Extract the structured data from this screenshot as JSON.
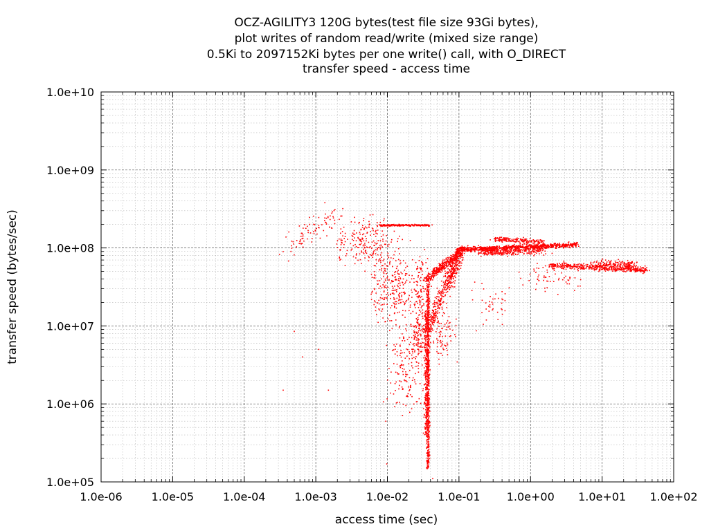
{
  "chart_data": {
    "type": "scatter",
    "title_lines": [
      "OCZ-AGILITY3 120G bytes(test file size 93Gi bytes),",
      "plot writes of random read/write (mixed size range)",
      "0.5Ki to 2097152Ki bytes per one write() call, with O_DIRECT",
      "transfer speed - access time"
    ],
    "xlabel": "access time (sec)",
    "ylabel": "transfer speed (bytes/sec)",
    "x_scale": "log",
    "y_scale": "log",
    "xlim": [
      1e-06,
      100
    ],
    "ylim": [
      100000,
      10000000000
    ],
    "x_ticks": [
      {
        "value": 1e-06,
        "label": "1.0e-06"
      },
      {
        "value": 1e-05,
        "label": "1.0e-05"
      },
      {
        "value": 0.0001,
        "label": "1.0e-04"
      },
      {
        "value": 0.001,
        "label": "1.0e-03"
      },
      {
        "value": 0.01,
        "label": "1.0e-02"
      },
      {
        "value": 0.1,
        "label": "1.0e-01"
      },
      {
        "value": 1,
        "label": "1.0e+00"
      },
      {
        "value": 10,
        "label": "1.0e+01"
      },
      {
        "value": 100,
        "label": "1.0e+02"
      }
    ],
    "y_ticks": [
      {
        "value": 100000,
        "label": "1.0e+05"
      },
      {
        "value": 1000000,
        "label": "1.0e+06"
      },
      {
        "value": 10000000,
        "label": "1.0e+07"
      },
      {
        "value": 100000000,
        "label": "1.0e+08"
      },
      {
        "value": 1000000000,
        "label": "1.0e+09"
      },
      {
        "value": 10000000000,
        "label": "1.0e+10"
      }
    ],
    "grid": true,
    "marker_color": "#ff0000",
    "clusters": [
      {
        "shape": "line",
        "from": [
          0.037,
          150000
        ],
        "to": [
          0.037,
          40000000
        ],
        "count": 650,
        "xspread": 0.022,
        "yspread": 0.02
      },
      {
        "shape": "line",
        "from": [
          0.035,
          400000
        ],
        "to": [
          0.035,
          15000000
        ],
        "count": 250,
        "xspread": 0.03,
        "yspread": 0.05
      },
      {
        "shape": "line",
        "from": [
          0.036,
          40000000
        ],
        "to": [
          0.12,
          100000000
        ],
        "count": 420,
        "xspread": 0.05,
        "yspread": 0.05
      },
      {
        "shape": "line",
        "from": [
          0.034,
          8000000
        ],
        "to": [
          0.1,
          80000000
        ],
        "count": 320,
        "xspread": 0.07,
        "yspread": 0.06
      },
      {
        "shape": "line",
        "from": [
          0.025,
          5000000
        ],
        "to": [
          0.032,
          60000000
        ],
        "count": 200,
        "xspread": 0.1,
        "yspread": 0.2
      },
      {
        "shape": "line",
        "from": [
          0.07,
          30000000
        ],
        "to": [
          0.1,
          85000000
        ],
        "count": 120,
        "xspread": 0.08,
        "yspread": 0.08
      },
      {
        "shape": "line",
        "from": [
          0.1,
          95000000
        ],
        "to": [
          4.5,
          110000000
        ],
        "count": 700,
        "xspread": 0.05,
        "yspread": 0.03
      },
      {
        "shape": "line",
        "from": [
          0.2,
          90000000
        ],
        "to": [
          1.5,
          95000000
        ],
        "count": 350,
        "xspread": 0.12,
        "yspread": 0.06
      },
      {
        "shape": "line",
        "from": [
          0.3,
          130000000
        ],
        "to": [
          1.5,
          120000000
        ],
        "count": 180,
        "xspread": 0.08,
        "yspread": 0.03
      },
      {
        "shape": "line",
        "from": [
          0.008,
          195000000
        ],
        "to": [
          0.04,
          195000000
        ],
        "count": 220,
        "xspread": 0.06,
        "yspread": 0.012
      },
      {
        "shape": "line",
        "from": [
          2,
          60000000
        ],
        "to": [
          42,
          52000000
        ],
        "count": 450,
        "xspread": 0.06,
        "yspread": 0.04
      },
      {
        "shape": "line",
        "from": [
          8,
          65000000
        ],
        "to": [
          30,
          60000000
        ],
        "count": 150,
        "xspread": 0.08,
        "yspread": 0.05
      },
      {
        "shape": "line",
        "from": [
          0.0004,
          100000000
        ],
        "to": [
          0.002,
          280000000
        ],
        "count": 90,
        "xspread": 0.18,
        "yspread": 0.15
      },
      {
        "shape": "blob",
        "center": [
          0.005,
          120000000
        ],
        "xspread": 0.4,
        "yspread": 0.3,
        "count": 220
      },
      {
        "shape": "blob",
        "center": [
          0.012,
          30000000
        ],
        "xspread": 0.3,
        "yspread": 0.45,
        "count": 260
      },
      {
        "shape": "blob",
        "center": [
          0.018,
          3000000
        ],
        "xspread": 0.25,
        "yspread": 0.55,
        "count": 150
      },
      {
        "shape": "blob",
        "center": [
          0.06,
          8000000
        ],
        "xspread": 0.18,
        "yspread": 0.4,
        "count": 90
      },
      {
        "shape": "blob",
        "center": [
          0.3,
          20000000
        ],
        "xspread": 0.3,
        "yspread": 0.3,
        "count": 40
      },
      {
        "shape": "blob",
        "center": [
          2,
          40000000
        ],
        "xspread": 0.4,
        "yspread": 0.15,
        "count": 60
      },
      {
        "shape": "points",
        "points": [
          [
            0.00035,
            1500000
          ],
          [
            0.00065,
            4000000
          ],
          [
            0.0015,
            1500000
          ],
          [
            0.0098,
            170000
          ],
          [
            0.0095,
            600000
          ],
          [
            0.0005,
            8500000
          ],
          [
            0.0011,
            5000000
          ],
          [
            0.043,
            110000
          ]
        ]
      }
    ]
  }
}
